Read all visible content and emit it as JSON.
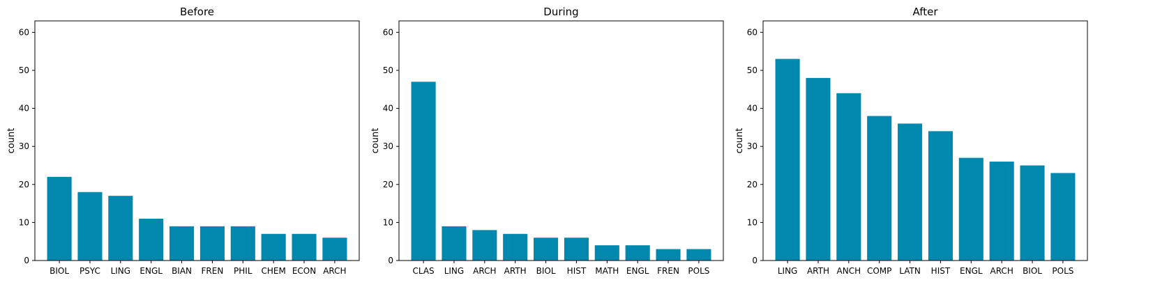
{
  "chart_data": [
    {
      "type": "bar",
      "title": "Before",
      "xlabel": "",
      "ylabel": "count",
      "ylim": [
        0,
        63
      ],
      "yticks": [
        0,
        10,
        20,
        30,
        40,
        50,
        60
      ],
      "categories": [
        "BIOL",
        "PSYC",
        "LING",
        "ENGL",
        "BIAN",
        "FREN",
        "PHIL",
        "CHEM",
        "ECON",
        "ARCH"
      ],
      "values": [
        22,
        18,
        17,
        11,
        9,
        9,
        9,
        7,
        7,
        6
      ],
      "color": "#0088AF",
      "grid": false
    },
    {
      "type": "bar",
      "title": "During",
      "xlabel": "",
      "ylabel": "count",
      "ylim": [
        0,
        63
      ],
      "yticks": [
        0,
        10,
        20,
        30,
        40,
        50,
        60
      ],
      "categories": [
        "CLAS",
        "LING",
        "ARCH",
        "ARTH",
        "BIOL",
        "HIST",
        "MATH",
        "ENGL",
        "FREN",
        "POLS"
      ],
      "values": [
        47,
        9,
        8,
        7,
        6,
        6,
        4,
        4,
        3,
        3
      ],
      "color": "#0088AF",
      "grid": false
    },
    {
      "type": "bar",
      "title": "After",
      "xlabel": "",
      "ylabel": "count",
      "ylim": [
        0,
        63
      ],
      "yticks": [
        0,
        10,
        20,
        30,
        40,
        50,
        60
      ],
      "categories": [
        "LING",
        "ARTH",
        "ANCH",
        "COMP",
        "LATN",
        "HIST",
        "ENGL",
        "ARCH",
        "BIOL",
        "POLS"
      ],
      "values": [
        53,
        48,
        44,
        38,
        36,
        34,
        27,
        26,
        25,
        23
      ],
      "color": "#0088AF",
      "grid": false
    }
  ]
}
